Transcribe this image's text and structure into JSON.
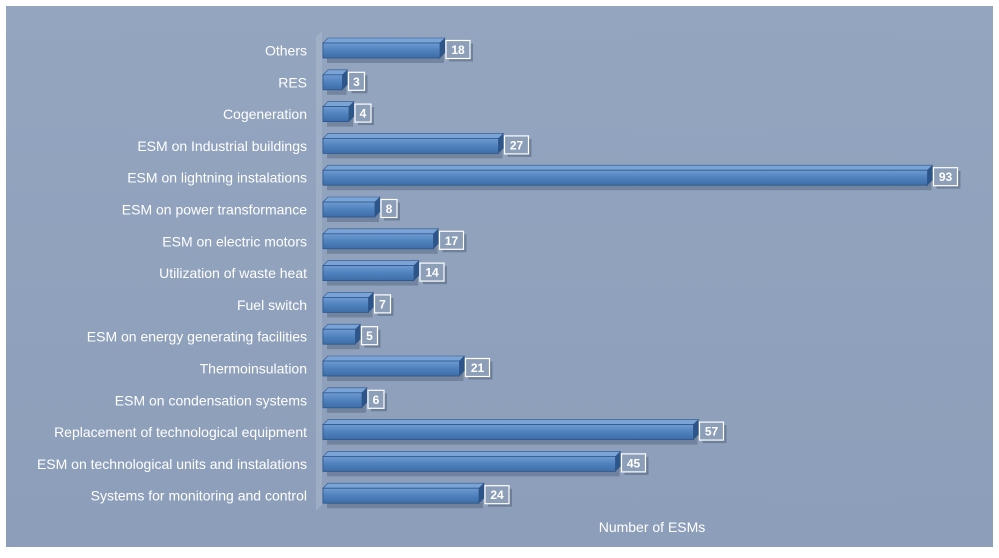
{
  "chart_data": {
    "type": "bar",
    "orientation": "horizontal",
    "title": "",
    "xlabel": "Number of ESMs",
    "ylabel": "",
    "xlim": [
      0,
      100
    ],
    "grid": false,
    "legend": "none",
    "data_labels": true,
    "categories": [
      "Others",
      "RES",
      "Cogeneration",
      "ESM on Industrial buildings",
      "ESM on lightning instalations",
      "ESM on power transformance",
      "ESM on electric motors",
      "Utilization of waste heat",
      "Fuel switch",
      "ESM on energy generating facilities",
      "Thermoinsulation",
      "ESM on condensation systems",
      "Replacement of technological equipment",
      "ESM on technological units and instalations",
      "Systems for monitoring and control"
    ],
    "values": [
      18,
      3,
      4,
      27,
      93,
      8,
      17,
      14,
      7,
      5,
      21,
      6,
      57,
      45,
      24
    ]
  },
  "colors": {
    "background": "#91a3be",
    "bar_fill": "#4f81bd",
    "bar_top": "#7aa3d6",
    "bar_side": "#2d5589",
    "label_box": "#8d9fb8",
    "label_border": "#ffffff",
    "text": "#ffffff"
  }
}
